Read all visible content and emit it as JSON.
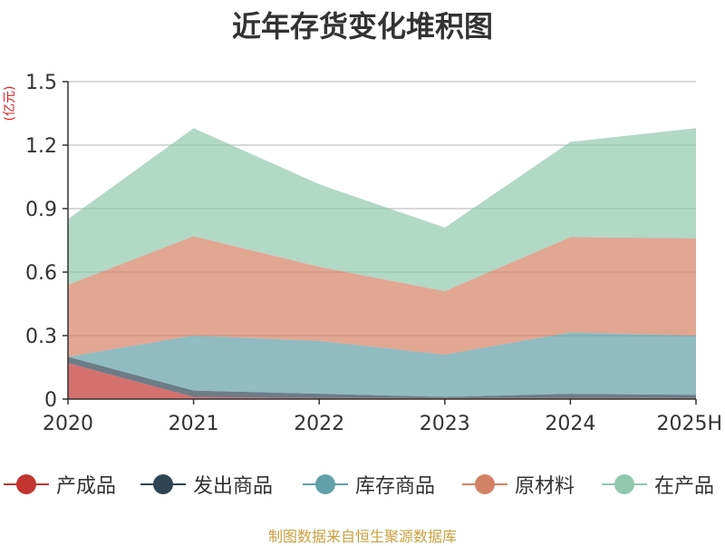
{
  "chart_data": {
    "type": "area",
    "stacked": true,
    "title": "近年存货变化堆积图",
    "y_unit_label": "(亿元)",
    "categories": [
      "2020",
      "2021",
      "2022",
      "2023",
      "2024",
      "2025H"
    ],
    "yticks": [
      "0",
      "0.3",
      "0.6",
      "0.9",
      "1.2",
      "1.5"
    ],
    "ylim": [
      0,
      1.5
    ],
    "grid": true,
    "legend_position": "bottom",
    "series": [
      {
        "name": "产成品",
        "color": "#c23531",
        "values": [
          0.17,
          0.01,
          0.005,
          0.005,
          0.005,
          0.005
        ]
      },
      {
        "name": "发出商品",
        "color": "#2f4554",
        "values": [
          0.03,
          0.03,
          0.02,
          0.005,
          0.02,
          0.015
        ]
      },
      {
        "name": "库存商品",
        "color": "#61a0a8",
        "values": [
          0.0,
          0.26,
          0.25,
          0.2,
          0.29,
          0.28
        ]
      },
      {
        "name": "原材料",
        "color": "#d48265",
        "values": [
          0.34,
          0.47,
          0.35,
          0.3,
          0.45,
          0.46
        ]
      },
      {
        "name": "在产品",
        "color": "#91c7ae",
        "values": [
          0.31,
          0.51,
          0.39,
          0.3,
          0.45,
          0.52
        ]
      }
    ]
  },
  "source": "制图数据来自恒生聚源数据库"
}
